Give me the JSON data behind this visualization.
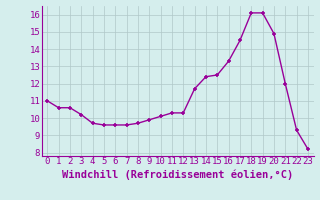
{
  "x": [
    0,
    1,
    2,
    3,
    4,
    5,
    6,
    7,
    8,
    9,
    10,
    11,
    12,
    13,
    14,
    15,
    16,
    17,
    18,
    19,
    20,
    21,
    22,
    23
  ],
  "y": [
    11.0,
    10.6,
    10.6,
    10.2,
    9.7,
    9.6,
    9.6,
    9.6,
    9.7,
    9.9,
    10.1,
    10.3,
    10.3,
    11.7,
    12.4,
    12.5,
    13.3,
    14.5,
    16.1,
    16.1,
    14.9,
    12.0,
    9.3,
    8.2
  ],
  "line_color": "#990099",
  "marker": "+",
  "marker_size": 3,
  "xlabel": "Windchill (Refroidissement éolien,°C)",
  "xlim": [
    -0.5,
    23.5
  ],
  "ylim": [
    7.8,
    16.5
  ],
  "yticks": [
    8,
    9,
    10,
    11,
    12,
    13,
    14,
    15,
    16
  ],
  "xticks": [
    0,
    1,
    2,
    3,
    4,
    5,
    6,
    7,
    8,
    9,
    10,
    11,
    12,
    13,
    14,
    15,
    16,
    17,
    18,
    19,
    20,
    21,
    22,
    23
  ],
  "bg_color": "#d5eeed",
  "grid_color": "#b0c8c8",
  "tick_label_fontsize": 6.5,
  "xlabel_fontsize": 7.5,
  "linewidth": 1.0
}
